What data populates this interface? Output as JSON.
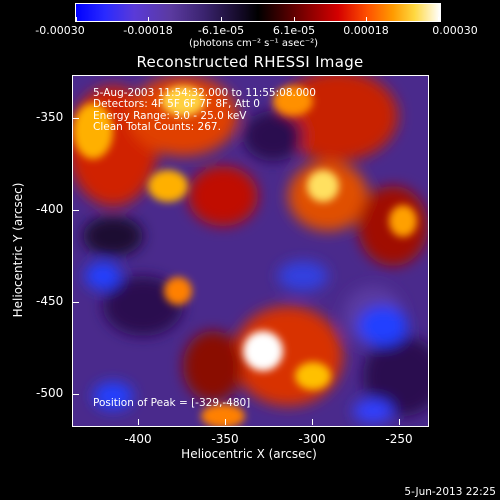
{
  "colorbar": {
    "ticks": [
      "-0.00030",
      "-0.00018",
      "-6.1e-05",
      "6.1e-05",
      "0.00018",
      "0.00030"
    ],
    "units_label": "(photons cm⁻² s⁻¹ asec⁻²)"
  },
  "title": "Reconstructed RHESSI Image",
  "annotations": {
    "time_range": "5-Aug-2003 11:54:32.000 to 11:55:08.000",
    "detectors": "Detectors: 4F 5F 6F 7F 8F, Att 0",
    "energy": "Energy Range: 3.0 - 25.0 keV",
    "method": "Clean    Total Counts: 267.",
    "peak": "Position of Peak = [-329,-480]"
  },
  "y_axis": {
    "label": "Heliocentric Y (arcsec)",
    "ticks": [
      "-350",
      "-400",
      "-450",
      "-500"
    ]
  },
  "x_axis": {
    "label": "Heliocentric X (arcsec)",
    "ticks": [
      "-400",
      "-350",
      "-300",
      "-250"
    ]
  },
  "footer": {
    "date": "5-Jun-2013 22:25"
  },
  "colors": {
    "background": "#000000",
    "foreground": "#ffffff"
  }
}
